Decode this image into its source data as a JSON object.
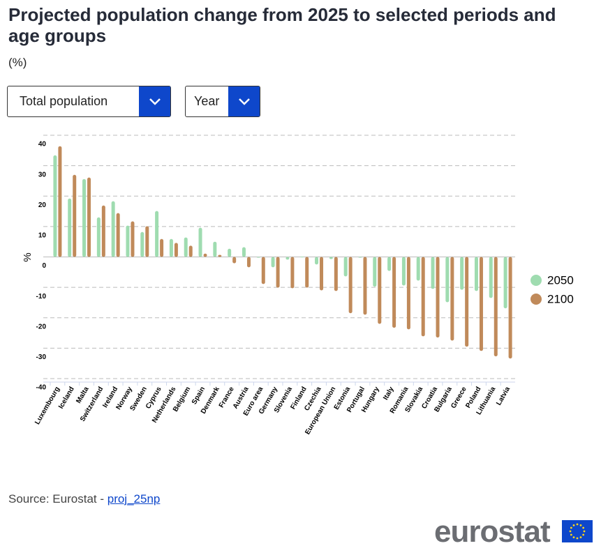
{
  "page": {
    "controls": [
      "Total population",
      "Year"
    ],
    "source": "Source: Eurostat - ",
    "source_link": "proj_25np",
    "logo": "eurostat"
  },
  "chart_data": {
    "type": "bar",
    "title": "Projected population change from 2025 to selected periods and age groups",
    "subtitle": "(%)",
    "y_label": "%",
    "categories": [
      "Luxembourg",
      "Iceland",
      "Malta",
      "Switzerland",
      "Ireland",
      "Norway",
      "Sweden",
      "Cyprus",
      "Netherlands",
      "Belgium",
      "Spain",
      "Denmark",
      "France",
      "Austria",
      "Euro area",
      "Germany",
      "Slovenia",
      "Finland",
      "Czechia",
      "European Union",
      "Estonia",
      "Portugal",
      "Hungary",
      "Italy",
      "Romania",
      "Slovakia",
      "Croatia",
      "Bulgaria",
      "Greece",
      "Poland",
      "Lithuania",
      "Latvia"
    ],
    "series": [
      {
        "name": "2050",
        "color": "#9fdcb0",
        "values": [
          33.4,
          19.2,
          25.6,
          13,
          18.3,
          10.3,
          8.2,
          15.1,
          5.9,
          6.4,
          9.6,
          5,
          2.7,
          3.2,
          -0.1,
          -3.4,
          -0.9,
          0.1,
          -2.5,
          -0.7,
          -6.4,
          -0.2,
          -9.8,
          -4.6,
          -9.4,
          -7.8,
          -10.5,
          -14.9,
          -10.8,
          -11.2,
          -13.5,
          -16.9
        ]
      },
      {
        "name": "2100",
        "color": "#c08a5a",
        "values": [
          36.4,
          27,
          26.1,
          16.9,
          14.4,
          11.7,
          10.1,
          5.9,
          4.6,
          3.7,
          1.1,
          0.7,
          -2.1,
          -3.4,
          -8.9,
          -10.1,
          -10.3,
          -10.1,
          -11,
          -11.2,
          -18.5,
          -19,
          -22,
          -23.3,
          -23.8,
          -26.1,
          -26.5,
          -27.5,
          -29.5,
          -30.9,
          -32.7,
          -33.4
        ]
      }
    ],
    "ylim": [
      -40,
      40
    ],
    "yticks": [
      -40,
      -30,
      -20,
      -10,
      0,
      10,
      20,
      30,
      40
    ],
    "grid": true
  }
}
